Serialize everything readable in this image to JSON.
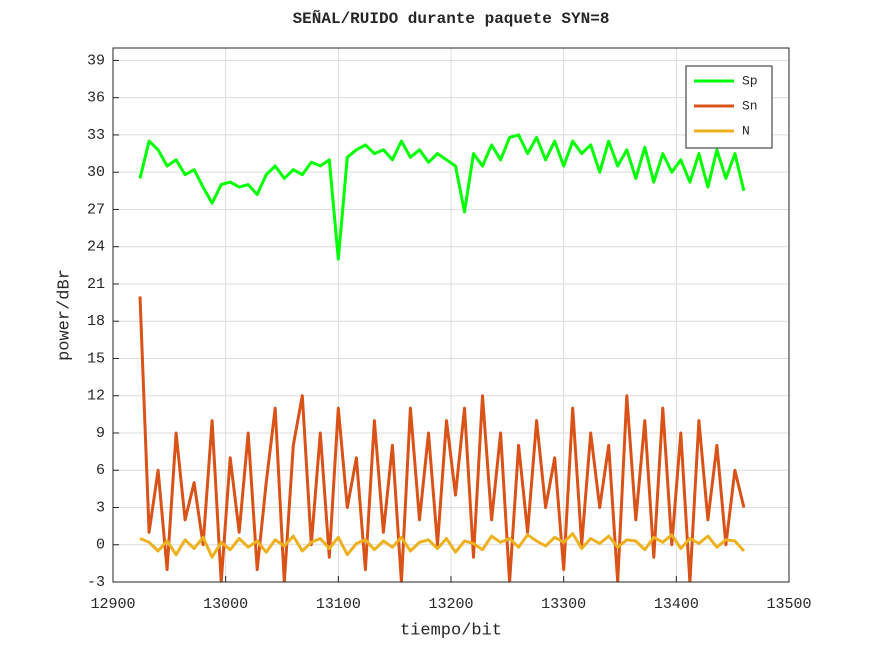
{
  "chart_data": {
    "type": "line",
    "title": "SEÑAL/RUIDO durante paquete SYN=8",
    "xlabel": "tiempo/bit",
    "ylabel": "power/dBr",
    "x": [
      12924,
      12932,
      12940,
      12948,
      12956,
      12964,
      12972,
      12980,
      12988,
      12996,
      13004,
      13012,
      13020,
      13028,
      13036,
      13044,
      13052,
      13060,
      13068,
      13076,
      13084,
      13092,
      13100,
      13108,
      13116,
      13124,
      13132,
      13140,
      13148,
      13156,
      13164,
      13172,
      13180,
      13188,
      13196,
      13204,
      13212,
      13220,
      13228,
      13236,
      13244,
      13252,
      13260,
      13268,
      13276,
      13284,
      13292,
      13300,
      13308,
      13316,
      13324,
      13332,
      13340,
      13348,
      13356,
      13364,
      13372,
      13380,
      13388,
      13396,
      13404,
      13412,
      13420,
      13428,
      13436,
      13444,
      13452,
      13460
    ],
    "series": [
      {
        "name": "Sp",
        "color": "#00ff00",
        "values": [
          29.5,
          32.5,
          31.8,
          30.5,
          31,
          29.8,
          30.2,
          28.8,
          27.5,
          29,
          29.2,
          28.8,
          29,
          28.2,
          29.8,
          30.5,
          29.5,
          30.2,
          29.8,
          30.8,
          30.5,
          31,
          23,
          31.2,
          31.8,
          32.2,
          31.5,
          31.8,
          31,
          32.5,
          31.2,
          31.8,
          30.8,
          31.5,
          31,
          30.5,
          26.8,
          31.5,
          30.5,
          32.2,
          31,
          32.8,
          33,
          31.5,
          32.8,
          31,
          32.5,
          30.5,
          32.5,
          31.5,
          32.2,
          30,
          32.5,
          30.5,
          31.8,
          29.5,
          32,
          29.2,
          31.5,
          30,
          31,
          29.2,
          31.5,
          28.8,
          31.8,
          29.5,
          31.5,
          28.5
        ]
      },
      {
        "name": "Sn",
        "color": "#d95319",
        "values": [
          20,
          1,
          6,
          -2,
          9,
          2,
          5,
          0,
          10,
          -3,
          7,
          1,
          9,
          -2,
          5,
          11,
          -3,
          8,
          12,
          0,
          9,
          -1,
          11,
          3,
          7,
          -2,
          10,
          1,
          8,
          -3,
          11,
          2,
          9,
          0,
          10,
          4,
          11,
          -1,
          12,
          2,
          9,
          -3,
          8,
          1,
          10,
          3,
          7,
          -2,
          11,
          0,
          9,
          3,
          8,
          -3,
          12,
          2,
          10,
          -1,
          11,
          0,
          9,
          -3,
          10,
          2,
          8,
          0,
          6,
          3
        ]
      },
      {
        "name": "N",
        "color": "#edb120",
        "values": [
          0.5,
          0.2,
          -0.5,
          0.3,
          -0.8,
          0.4,
          -0.3,
          0.6,
          -1,
          0.2,
          -0.4,
          0.5,
          -0.2,
          0.3,
          -0.6,
          0.4,
          -0.1,
          0.7,
          -0.5,
          0.2,
          0.5,
          -0.3,
          0.6,
          -0.8,
          0.1,
          0.4,
          -0.4,
          0.3,
          -0.2,
          0.6,
          -0.5,
          0.2,
          0.4,
          -0.3,
          0.5,
          -0.6,
          0.3,
          0.1,
          -0.4,
          0.7,
          0.2,
          0.5,
          -0.2,
          0.8,
          0.3,
          -0.1,
          0.6,
          0.2,
          0.9,
          -0.3,
          0.5,
          0.1,
          0.7,
          -0.2,
          0.4,
          0.3,
          -0.4,
          0.6,
          0.2,
          0.8,
          -0.3,
          0.5,
          0.1,
          0.7,
          -0.2,
          0.4,
          0.3,
          -0.5
        ]
      }
    ],
    "xlim": [
      12900,
      13500
    ],
    "xticks": [
      12900,
      13000,
      13100,
      13200,
      13300,
      13400,
      13500
    ],
    "ylim": [
      -3,
      40
    ],
    "yticks": [
      -3,
      0,
      3,
      6,
      9,
      12,
      15,
      18,
      21,
      24,
      27,
      30,
      33,
      36,
      39
    ],
    "grid": true,
    "legend": "upper right"
  }
}
